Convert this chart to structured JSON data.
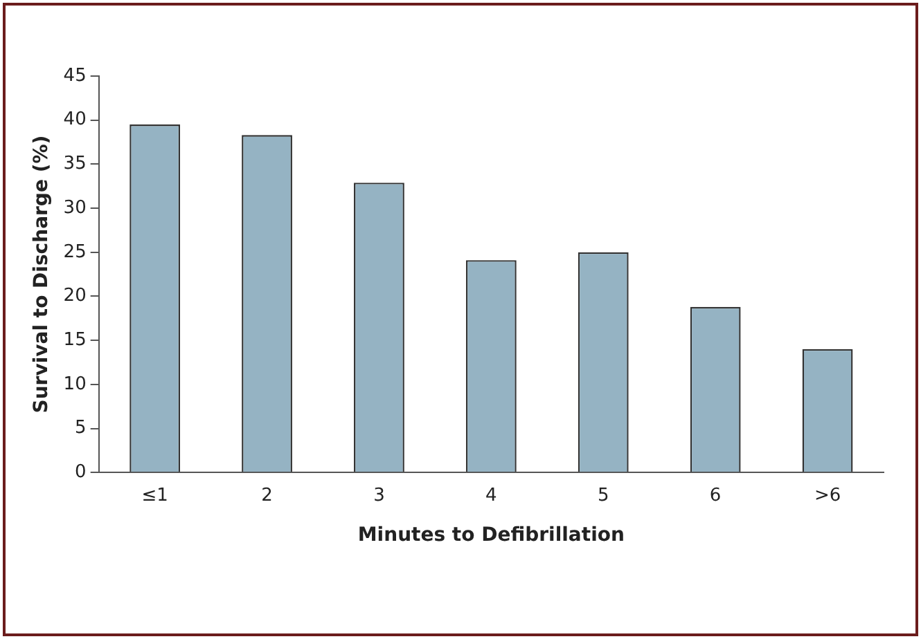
{
  "chart_data": {
    "type": "bar",
    "xlabel": "Minutes to Defibrillation",
    "ylabel": "Survival to Discharge (%)",
    "categories": [
      "≤1",
      "2",
      "3",
      "4",
      "5",
      "6",
      ">6"
    ],
    "values": [
      39.5,
      38.3,
      32.9,
      24.1,
      25.0,
      18.8,
      14.0
    ],
    "color": "#95b3c3",
    "ylim": [
      0,
      45
    ],
    "yticks": [
      0,
      5,
      10,
      15,
      20,
      25,
      30,
      35,
      40,
      45
    ],
    "grid": false,
    "legend": false
  }
}
